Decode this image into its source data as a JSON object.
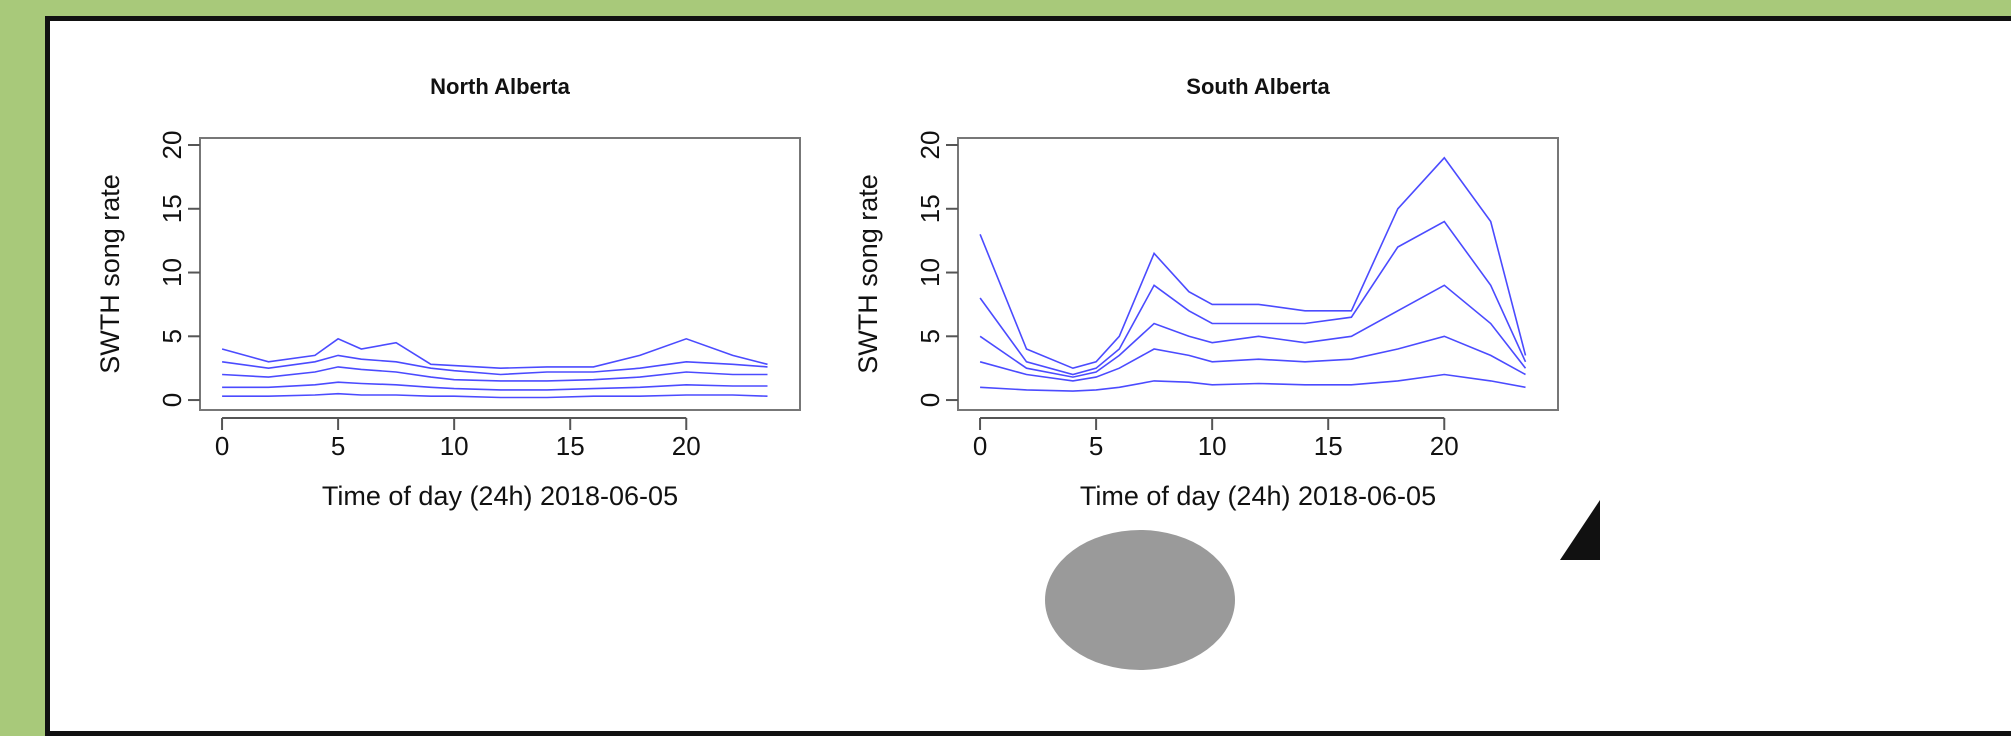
{
  "chart_data": [
    {
      "type": "line",
      "title": "North Alberta",
      "x_label": "Time of day (24h) 2018-06-05",
      "y_label": "SWTH song rate",
      "x": [
        0,
        2,
        4,
        5,
        6,
        7.5,
        9,
        10,
        12,
        14,
        16,
        18,
        20,
        22,
        23.5
      ],
      "series": [
        {
          "color": "#2b2bff",
          "values": [
            4,
            3,
            3.5,
            4.8,
            4,
            4.5,
            2.8,
            2.7,
            2.5,
            2.6,
            2.6,
            3.5,
            4.8,
            3.5,
            2.8
          ]
        },
        {
          "color": "#2b2bff",
          "values": [
            3,
            2.5,
            3,
            3.5,
            3.2,
            3,
            2.5,
            2.3,
            2,
            2.2,
            2.2,
            2.5,
            3,
            2.8,
            2.6
          ]
        },
        {
          "color": "#2b2bff",
          "values": [
            2,
            1.8,
            2.2,
            2.6,
            2.4,
            2.2,
            1.8,
            1.6,
            1.5,
            1.5,
            1.6,
            1.8,
            2.2,
            2,
            2
          ]
        },
        {
          "color": "#2b2bff",
          "values": [
            1,
            1,
            1.2,
            1.4,
            1.3,
            1.2,
            1,
            0.9,
            0.8,
            0.8,
            0.9,
            1,
            1.2,
            1.1,
            1.1
          ]
        },
        {
          "color": "#2b2bff",
          "values": [
            0.3,
            0.3,
            0.4,
            0.5,
            0.4,
            0.4,
            0.3,
            0.3,
            0.2,
            0.2,
            0.3,
            0.3,
            0.4,
            0.4,
            0.3
          ]
        }
      ],
      "xlim": [
        -0.95,
        24.9
      ],
      "ylim": [
        -0.78,
        20.55
      ],
      "xticks": [
        0,
        5,
        10,
        15,
        20
      ],
      "yticks": [
        0,
        5,
        10,
        15,
        20
      ]
    },
    {
      "type": "line",
      "title": "South Alberta",
      "x_label": "Time of day (24h) 2018-06-05",
      "y_label": "SWTH song rate",
      "x": [
        0,
        2,
        4,
        5,
        6,
        7.5,
        9,
        10,
        12,
        14,
        16,
        18,
        20,
        22,
        23.5
      ],
      "series": [
        {
          "color": "#2b2bff",
          "values": [
            13,
            4,
            2.5,
            3,
            5,
            11.5,
            8.5,
            7.5,
            7.5,
            7,
            7,
            15,
            19,
            14,
            3.5
          ]
        },
        {
          "color": "#2b2bff",
          "values": [
            8,
            3,
            2,
            2.5,
            4,
            9,
            7,
            6,
            6,
            6,
            6.5,
            12,
            14,
            9,
            3
          ]
        },
        {
          "color": "#2b2bff",
          "values": [
            5,
            2.5,
            1.8,
            2.2,
            3.5,
            6,
            5,
            4.5,
            5,
            4.5,
            5,
            7,
            9,
            6,
            2.5
          ]
        },
        {
          "color": "#2b2bff",
          "values": [
            3,
            2,
            1.5,
            1.8,
            2.5,
            4,
            3.5,
            3,
            3.2,
            3,
            3.2,
            4,
            5,
            3.5,
            2
          ]
        },
        {
          "color": "#2b2bff",
          "values": [
            1,
            0.8,
            0.7,
            0.8,
            1,
            1.5,
            1.4,
            1.2,
            1.3,
            1.2,
            1.2,
            1.5,
            2,
            1.5,
            1
          ]
        }
      ],
      "xlim": [
        -0.95,
        24.9
      ],
      "ylim": [
        -0.78,
        20.55
      ],
      "xticks": [
        0,
        5,
        10,
        15,
        20
      ],
      "yticks": [
        0,
        5,
        10,
        15,
        20
      ]
    }
  ]
}
